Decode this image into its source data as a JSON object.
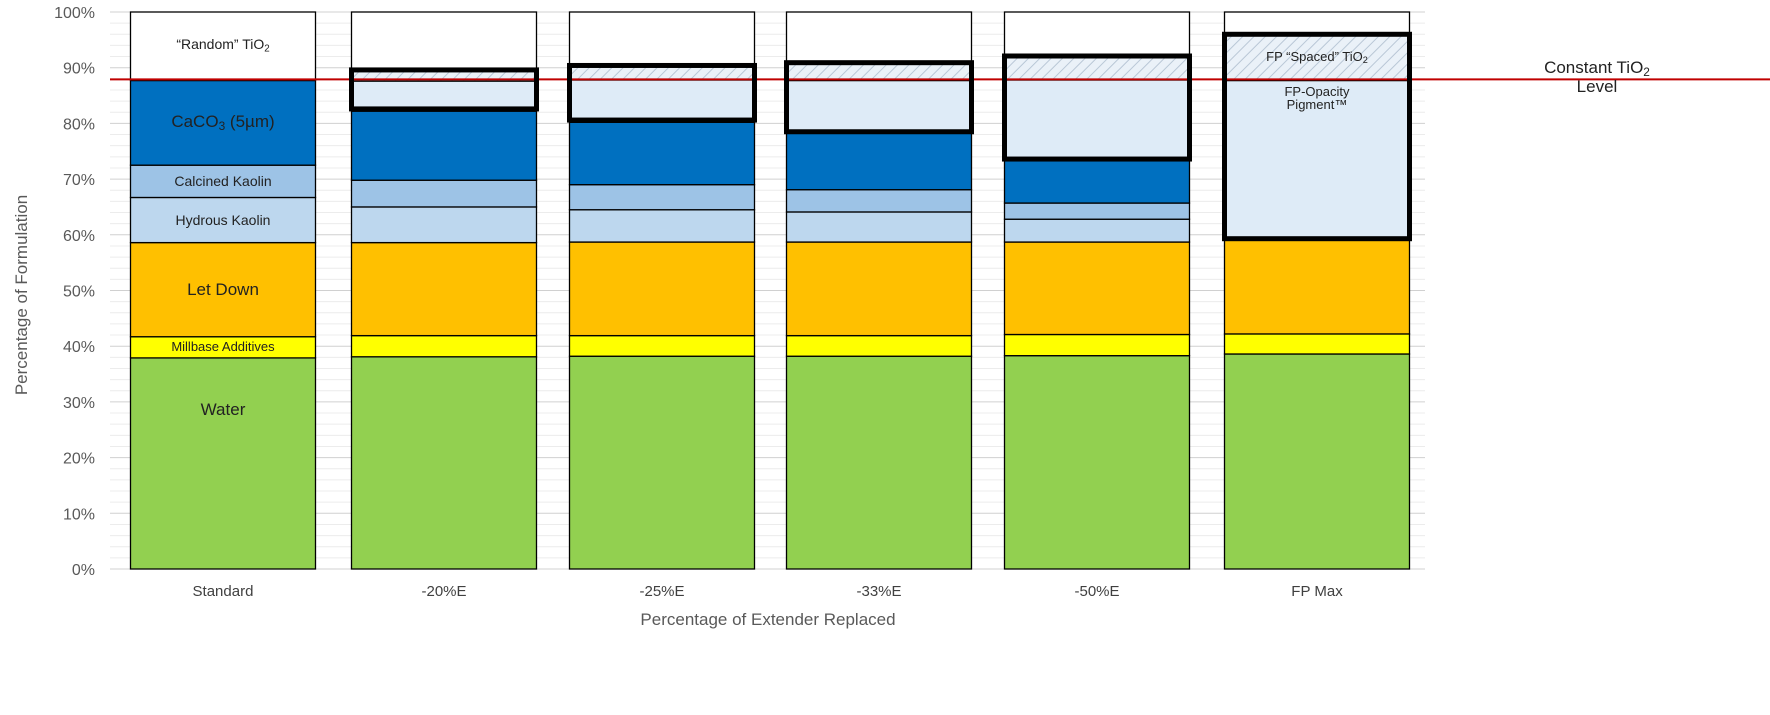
{
  "chart_data": {
    "type": "stacked-bar",
    "xlabel": "Percentage of Extender Replaced",
    "ylabel": "Percentage of Formulation",
    "ylim": [
      0,
      100
    ],
    "yticks": [
      "0%",
      "10%",
      "20%",
      "30%",
      "40%",
      "50%",
      "60%",
      "70%",
      "80%",
      "90%",
      "100%"
    ],
    "grid": true,
    "categories": [
      "Standard",
      "-20%E",
      "-25%E",
      "-33%E",
      "-50%E",
      "FP Max"
    ],
    "series": [
      {
        "key": "water",
        "color": "#92d050",
        "values": [
          37.9,
          38.1,
          38.2,
          38.2,
          38.3,
          38.6
        ]
      },
      {
        "key": "millbase",
        "color": "#ffff00",
        "values": [
          3.8,
          3.8,
          3.7,
          3.7,
          3.8,
          3.6
        ]
      },
      {
        "key": "letdown",
        "color": "#ffc000",
        "values": [
          16.9,
          16.7,
          16.8,
          16.8,
          16.6,
          16.9
        ]
      },
      {
        "key": "hydrous",
        "color": "#bdd7ee",
        "values": [
          8.1,
          6.4,
          5.8,
          5.4,
          4.1,
          0
        ]
      },
      {
        "key": "calcined",
        "color": "#9dc3e6",
        "values": [
          5.8,
          4.8,
          4.5,
          4.0,
          2.9,
          0
        ]
      },
      {
        "key": "caco3",
        "color": "#0070c0",
        "values": [
          15.2,
          12.4,
          11.2,
          10.3,
          7.6,
          0
        ]
      },
      {
        "key": "fpop",
        "color": "#deebf7",
        "values": [
          0,
          5.4,
          7.6,
          9.3,
          14.5,
          28.6
        ]
      },
      {
        "key": "fptio2",
        "color": "#deebf7",
        "hatched": true,
        "values": [
          0,
          1.8,
          2.5,
          3.0,
          4.4,
          8.2
        ]
      },
      {
        "key": "tio2",
        "color": "#ffffff",
        "values": [
          12.3,
          10.6,
          9.7,
          9.3,
          7.8,
          4.1
        ]
      }
    ],
    "highlight_boxes": [
      {
        "category": "-20%E",
        "from": 82.6,
        "to": 89.6
      },
      {
        "category": "-25%E",
        "from": 80.6,
        "to": 90.4
      },
      {
        "category": "-33%E",
        "from": 78.5,
        "to": 90.9
      },
      {
        "category": "-50%E",
        "from": 73.6,
        "to": 92.1
      },
      {
        "category": "FP Max",
        "from": 59.3,
        "to": 96.0
      }
    ],
    "reference_line": {
      "value": 87.9,
      "color": "#c00000"
    },
    "annotations": {
      "tio2": {
        "pre": "“Random” TiO",
        "sub": "2",
        "post": ""
      },
      "caco3": {
        "pre": "CaCO",
        "sub": "3",
        "post": " (5µm)"
      },
      "calcined": "Calcined Kaolin",
      "hydrous": "Hydrous Kaolin",
      "letdown": "Let Down",
      "millbase": "Millbase Additives",
      "water": "Water",
      "fptio2": {
        "pre": "FP “Spaced” TiO",
        "sub": "2",
        "post": ""
      },
      "fpop_line1": "FP-Opacity",
      "fpop_line2": "Pigment™",
      "constant_line1": {
        "pre": "Constant TiO",
        "sub": "2",
        "post": ""
      },
      "constant_line2": "Level"
    }
  }
}
